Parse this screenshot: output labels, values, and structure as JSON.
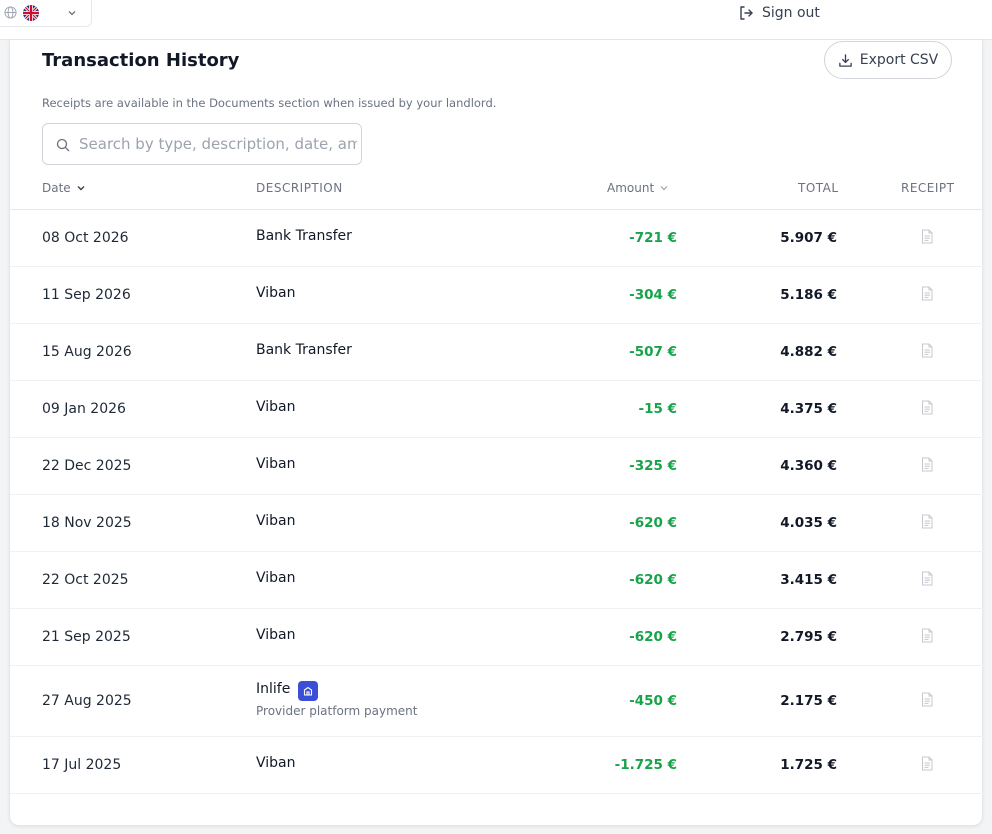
{
  "header": {
    "language_icon": "globe-icon",
    "flag": "uk-flag-icon",
    "sign_out_label": "Sign out"
  },
  "page": {
    "title": "Transaction History",
    "export_label": "Export CSV",
    "note": "Receipts are available in the Documents section when issued by your landlord.",
    "search_placeholder": "Search by type, description, date, amount",
    "search_value": ""
  },
  "table": {
    "columns": {
      "date": "Date",
      "description": "DESCRIPTION",
      "amount": "Amount",
      "total": "TOTAL",
      "receipt": "RECEIPT"
    },
    "rows": [
      {
        "date": "08 Oct 2026",
        "description": "Bank Transfer",
        "amount": "-721 €",
        "total": "5.907 €"
      },
      {
        "date": "11 Sep 2026",
        "description": "Viban",
        "amount": "-304 €",
        "total": "5.186 €"
      },
      {
        "date": "15 Aug 2026",
        "description": "Bank Transfer",
        "amount": "-507 €",
        "total": "4.882 €"
      },
      {
        "date": "09 Jan 2026",
        "description": "Viban",
        "amount": "-15 €",
        "total": "4.375 €"
      },
      {
        "date": "22 Dec 2025",
        "description": "Viban",
        "amount": "-325 €",
        "total": "4.360 €"
      },
      {
        "date": "18 Nov 2025",
        "description": "Viban",
        "amount": "-620 €",
        "total": "4.035 €"
      },
      {
        "date": "22 Oct 2025",
        "description": "Viban",
        "amount": "-620 €",
        "total": "3.415 €"
      },
      {
        "date": "21 Sep 2025",
        "description": "Viban",
        "amount": "-620 €",
        "total": "2.795 €"
      },
      {
        "date": "27 Aug 2025",
        "description": "Inlife",
        "subtitle": "Provider platform payment",
        "amount": "-450 €",
        "total": "2.175 €"
      },
      {
        "date": "17 Jul 2025",
        "description": "Viban",
        "amount": "-1.725 €",
        "total": "1.725 €"
      }
    ]
  },
  "colors": {
    "amount": "#16a34a",
    "badge": "#3b4fd6"
  }
}
